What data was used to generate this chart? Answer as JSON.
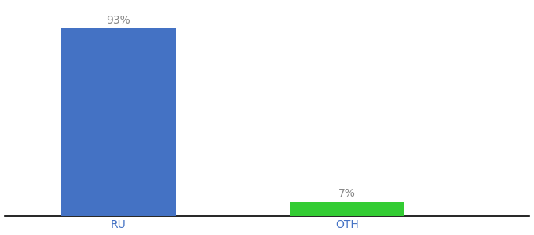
{
  "categories": [
    "RU",
    "OTH"
  ],
  "values": [
    93,
    7
  ],
  "bar_colors": [
    "#4472c4",
    "#33cc33"
  ],
  "value_labels": [
    "93%",
    "7%"
  ],
  "background_color": "#ffffff",
  "text_color": "#888888",
  "ylim": [
    0,
    105
  ],
  "bar_width": 0.5,
  "label_fontsize": 10,
  "tick_fontsize": 10,
  "x_positions": [
    1,
    2
  ],
  "xlim": [
    0.5,
    2.8
  ]
}
